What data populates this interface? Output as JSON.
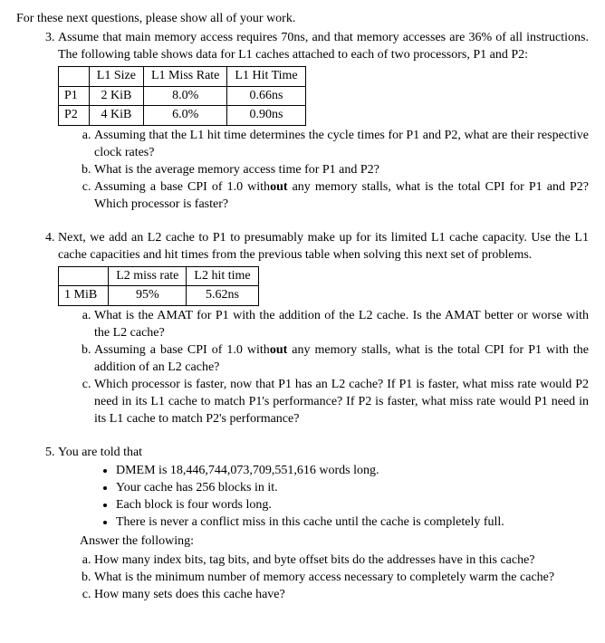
{
  "intro": "For these next questions, please show all of your work.",
  "q3": {
    "text": "Assume that main memory access requires 70ns, and that memory accesses are 36% of all instructions. The following table shows data for L1 caches attached to each of two processors, P1 and P2:",
    "table": {
      "headers": [
        "",
        "L1 Size",
        "L1 Miss Rate",
        "L1 Hit Time"
      ],
      "rows": [
        [
          "P1",
          "2 KiB",
          "8.0%",
          "0.66ns"
        ],
        [
          "P2",
          "4 KiB",
          "6.0%",
          "0.90ns"
        ]
      ]
    },
    "a": "Assuming that the L1 hit time determines the cycle times for P1 and P2, what are their respective clock rates?",
    "b": "What is the average memory access time for P1 and P2?",
    "c_pre": "Assuming a base CPI of 1.0 with",
    "c_bold": "out",
    "c_post": " any memory stalls, what is the total CPI for P1 and P2?  Which processor is faster?"
  },
  "q4": {
    "text": "Next, we add an L2 cache to P1 to presumably make up for its limited L1 cache capacity.  Use the L1 cache capacities and hit times from the previous table when solving this next set of problems.",
    "table": {
      "headers": [
        "",
        "L2 miss rate",
        "L2 hit time"
      ],
      "rows": [
        [
          "1 MiB",
          "95%",
          "5.62ns"
        ]
      ]
    },
    "a": "What is the AMAT for P1 with the addition of the L2 cache.  Is the AMAT better or worse with the L2 cache?",
    "b_pre": "Assuming a base CPI of 1.0 with",
    "b_bold": "out",
    "b_post": " any memory stalls, what is the total CPI for P1 with the addition of an L2 cache?",
    "c": "Which processor is faster, now that P1 has an L2 cache?  If P1 is faster, what miss rate would P2 need in its L1 cache to match P1's performance?  If P2 is faster, what miss rate would P1 need in its L1 cache to match P2's performance?"
  },
  "q5": {
    "text": "You are told that",
    "bullets": [
      "DMEM is 18,446,744,073,709,551,616 words long.",
      "Your cache has 256 blocks in it.",
      "Each block is four words long.",
      "There is never a conflict miss in this cache until the cache is completely full."
    ],
    "answer": "Answer the following:",
    "a": "How many index bits, tag bits, and byte offset bits do the addresses have in this cache?",
    "b": "What is the minimum number of memory access necessary to completely warm the cache?",
    "c": "How many sets does this cache have?"
  }
}
